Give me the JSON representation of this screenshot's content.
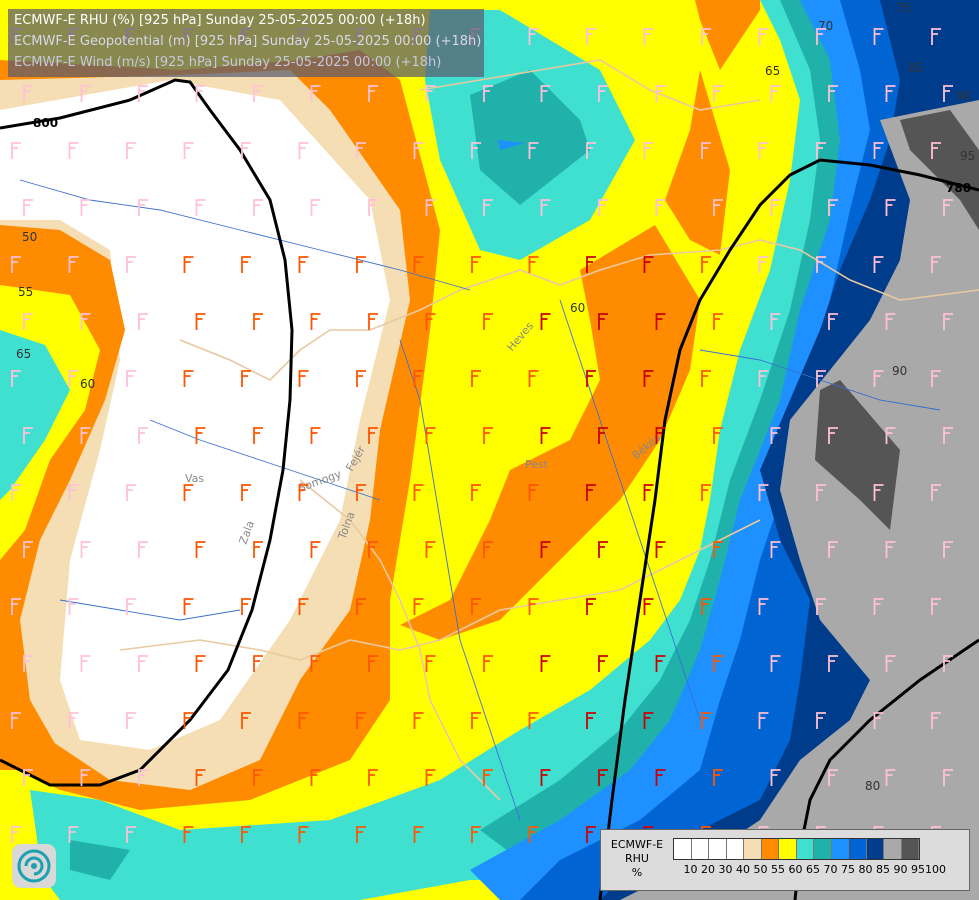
{
  "title_lines": [
    "ECMWF-E RHU (%) [925 hPa] Sunday 25-05-2025 00:00 (+18h)",
    "ECMWF-E Geopotential (m) [925 hPa] Sunday 25-05-2025 00:00 (+18h)",
    "ECMWF-E Wind (m/s) [925 hPa] Sunday 25-05-2025 00:00 (+18h)"
  ],
  "legend": {
    "model": "ECMWF-E",
    "variable": "RHU",
    "unit": "%",
    "ticks": [
      "10",
      "20",
      "30",
      "40",
      "50",
      "55",
      "60",
      "65",
      "70",
      "75",
      "80",
      "85",
      "90",
      "95",
      "100"
    ],
    "colors": [
      "#ffffff",
      "#ffffff",
      "#ffffff",
      "#ffffff",
      "#f5deb3",
      "#ff8c00",
      "#ffff00",
      "#40e0d0",
      "#20b2aa",
      "#1e90ff",
      "#0064d2",
      "#003c8c",
      "#a9a9a9",
      "#555555"
    ]
  },
  "contour_labels": {
    "geopotential": [
      "800",
      "780"
    ],
    "rhu": [
      "50",
      "55",
      "60",
      "65",
      "60",
      "65",
      "70",
      "75",
      "85",
      "90",
      "95",
      "90",
      "80"
    ]
  },
  "region_labels": [
    "Vas",
    "Zala",
    "Somogy",
    "Tolna",
    "Fejér",
    "Pest",
    "Heves",
    "Békés"
  ],
  "icons": [
    "logo-icon",
    "wind-barb-icon",
    "station-marker-icon"
  ]
}
